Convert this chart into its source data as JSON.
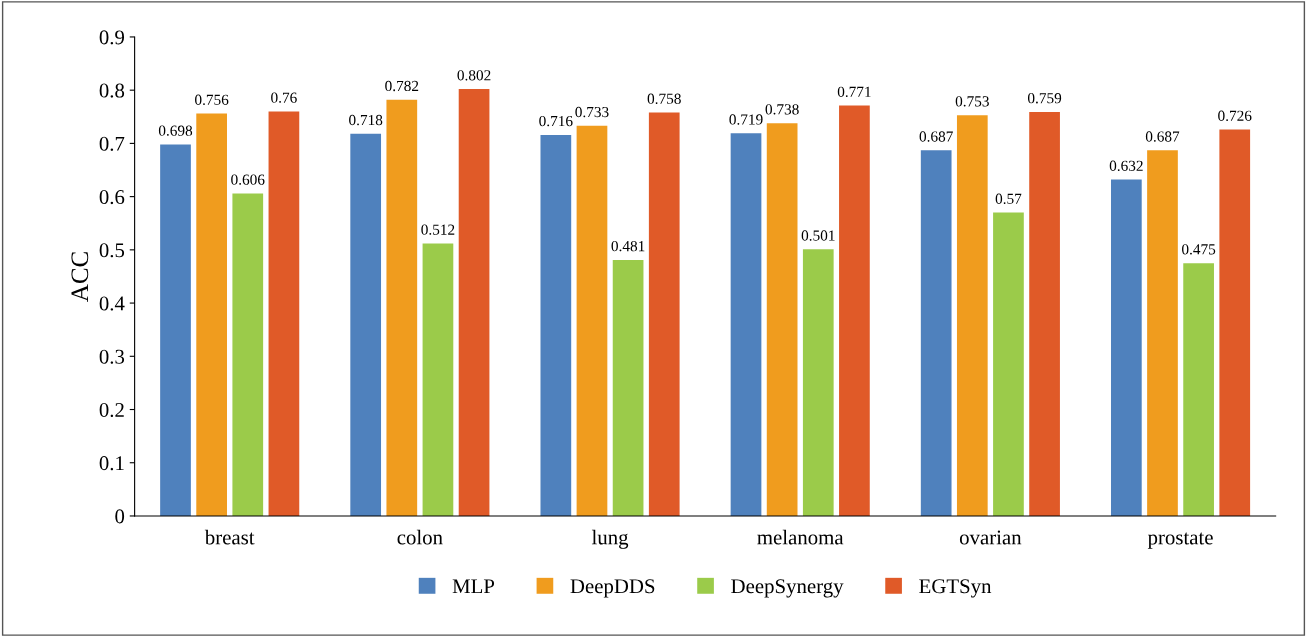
{
  "chart_data": {
    "type": "bar",
    "ylabel": "ACC",
    "categories": [
      "breast",
      "colon",
      "lung",
      "melanoma",
      "ovarian",
      "prostate"
    ],
    "series": [
      {
        "name": "MLP",
        "color": "#4f81bd",
        "values": [
          0.698,
          0.718,
          0.716,
          0.719,
          0.687,
          0.632
        ]
      },
      {
        "name": "DeepDDS",
        "color": "#f09c1e",
        "values": [
          0.756,
          0.782,
          0.733,
          0.738,
          0.753,
          0.687
        ]
      },
      {
        "name": "DeepSynergy",
        "color": "#9bcb4a",
        "values": [
          0.606,
          0.512,
          0.481,
          0.501,
          0.57,
          0.475
        ]
      },
      {
        "name": "EGTSyn",
        "color": "#e05a28",
        "values": [
          0.76,
          0.802,
          0.758,
          0.771,
          0.759,
          0.726
        ]
      }
    ],
    "ylim": [
      0,
      0.9
    ],
    "yticks": [
      0,
      0.1,
      0.2,
      0.3,
      0.4,
      0.5,
      0.6,
      0.7,
      0.8,
      0.9
    ],
    "data_labels": true,
    "grid": false,
    "legend": "bottom"
  }
}
